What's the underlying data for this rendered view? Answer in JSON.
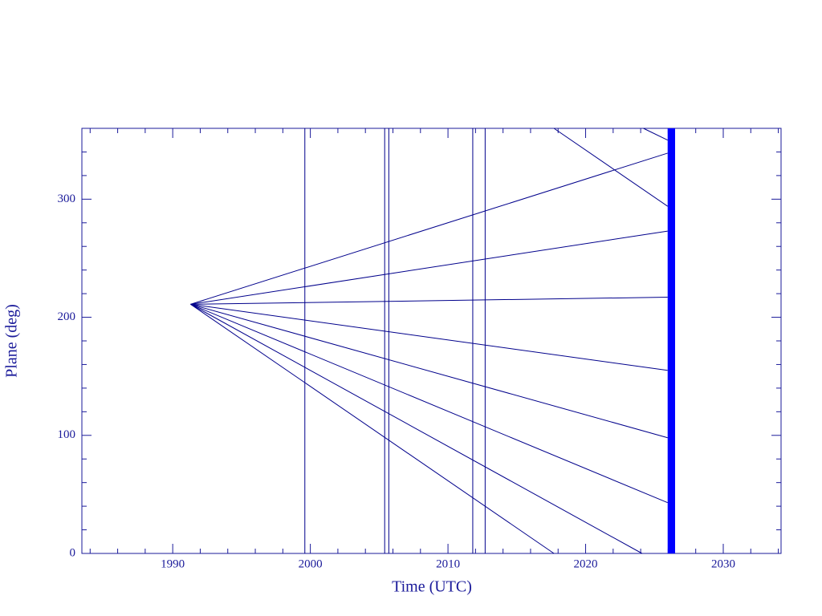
{
  "chart_data": {
    "type": "line",
    "xlabel": "Time (UTC)",
    "ylabel": "Plane (deg)",
    "xlim": [
      1983.4,
      2034.2
    ],
    "ylim": [
      0,
      360
    ],
    "xticks": [
      1990,
      2000,
      2010,
      2020,
      2030
    ],
    "yticks": [
      0,
      100,
      200,
      300
    ],
    "xminorticks": [
      1984,
      1986,
      1988,
      1992,
      1994,
      1996,
      1998,
      2002,
      2004,
      2006,
      2008,
      2012,
      2014,
      2016,
      2018,
      2022,
      2024,
      2026,
      2028,
      2032,
      2034
    ],
    "yminorticks": [
      20,
      40,
      60,
      80,
      120,
      140,
      160,
      180,
      220,
      240,
      260,
      280,
      320,
      340
    ],
    "color": "#00008b",
    "series": [
      {
        "x": [
          1991.3,
          2025.96
        ],
        "values": [
          211,
          339
        ]
      },
      {
        "x": [
          1991.3,
          2025.96
        ],
        "values": [
          211,
          273
        ]
      },
      {
        "x": [
          1991.3,
          2025.96
        ],
        "values": [
          211,
          217
        ]
      },
      {
        "x": [
          1991.3,
          2025.96
        ],
        "values": [
          211,
          155
        ]
      },
      {
        "x": [
          1991.3,
          2025.96
        ],
        "values": [
          211,
          98
        ]
      },
      {
        "x": [
          1991.3,
          2025.96
        ],
        "values": [
          211,
          43
        ]
      },
      {
        "x": [
          1991.3,
          2024.1
        ],
        "values": [
          211,
          0
        ]
      },
      {
        "x": [
          1991.3,
          2017.7
        ],
        "values": [
          211,
          0
        ]
      },
      {
        "x": [
          2017.7,
          2025.96
        ],
        "values": [
          360,
          294
        ]
      },
      {
        "x": [
          2024.2,
          2025.96
        ],
        "values": [
          360,
          350
        ]
      }
    ],
    "vlines": [
      1999.6,
      2005.4,
      2005.7,
      2011.8,
      2012.7
    ],
    "band": {
      "xlim": [
        2025.96,
        2026.5
      ],
      "color": "#0000ff"
    }
  }
}
